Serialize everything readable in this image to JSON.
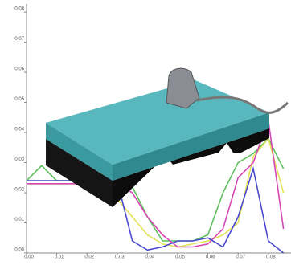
{
  "chart_data": {
    "type": "line",
    "x": [
      0,
      0.005,
      0.01,
      0.015,
      0.02,
      0.025,
      0.03,
      0.035,
      0.04,
      0.045,
      0.05,
      0.055,
      0.06,
      0.065,
      0.07,
      0.075,
      0.08,
      0.085
    ],
    "series": [
      {
        "color": "#5cc05a",
        "values": [
          0.024,
          0.029,
          0.024,
          0.024,
          0.024,
          0.024,
          0.024,
          0.022,
          0.012,
          0.004,
          0.004,
          0.004,
          0.006,
          0.02,
          0.03,
          0.033,
          0.038,
          0.028
        ]
      },
      {
        "color": "#e2e25a",
        "values": [
          0.023,
          0.023,
          0.023,
          0.023,
          0.023,
          0.023,
          0.018,
          0.012,
          0.006,
          0.003,
          0.002,
          0.003,
          0.004,
          0.006,
          0.01,
          0.032,
          0.038,
          0.02
        ]
      },
      {
        "color": "#d646b4",
        "values": [
          0.023,
          0.023,
          0.023,
          0.023,
          0.023,
          0.023,
          0.023,
          0.02,
          0.012,
          0.006,
          0.002,
          0.002,
          0.003,
          0.008,
          0.025,
          0.03,
          0.044,
          0.008
        ]
      },
      {
        "color": "#4a4ad0",
        "values": [
          0.024,
          0.024,
          0.024,
          0.024,
          0.024,
          0.024,
          0.024,
          0.004,
          0.001,
          0.002,
          0.004,
          0.004,
          0.005,
          0.002,
          0.012,
          0.028,
          0.004,
          0
        ]
      }
    ],
    "xlim": [
      0,
      0.0875
    ],
    "ylim": [
      0,
      0.0827
    ],
    "xticks": [
      {
        "value": 0,
        "label": "0.00"
      },
      {
        "value": 0.01,
        "label": "0.01"
      },
      {
        "value": 0.02,
        "label": "0.02"
      },
      {
        "value": 0.03,
        "label": "0.03"
      },
      {
        "value": 0.04,
        "label": "0.04"
      },
      {
        "value": 0.05,
        "label": "0.05"
      },
      {
        "value": 0.06,
        "label": "0.06"
      },
      {
        "value": 0.07,
        "label": "0.07"
      },
      {
        "value": 0.08,
        "label": "0.08"
      }
    ],
    "yticks": [
      {
        "value": 0,
        "label": "0.00"
      },
      {
        "value": 0.01,
        "label": "0.01"
      },
      {
        "value": 0.02,
        "label": "0.02"
      },
      {
        "value": 0.03,
        "label": "0.03"
      },
      {
        "value": 0.04,
        "label": "0.04"
      },
      {
        "value": 0.05,
        "label": "0.05"
      },
      {
        "value": 0.06,
        "label": "0.06"
      },
      {
        "value": 0.07,
        "label": "0.07"
      },
      {
        "value": 0.08,
        "label": "0.08"
      }
    ]
  }
}
